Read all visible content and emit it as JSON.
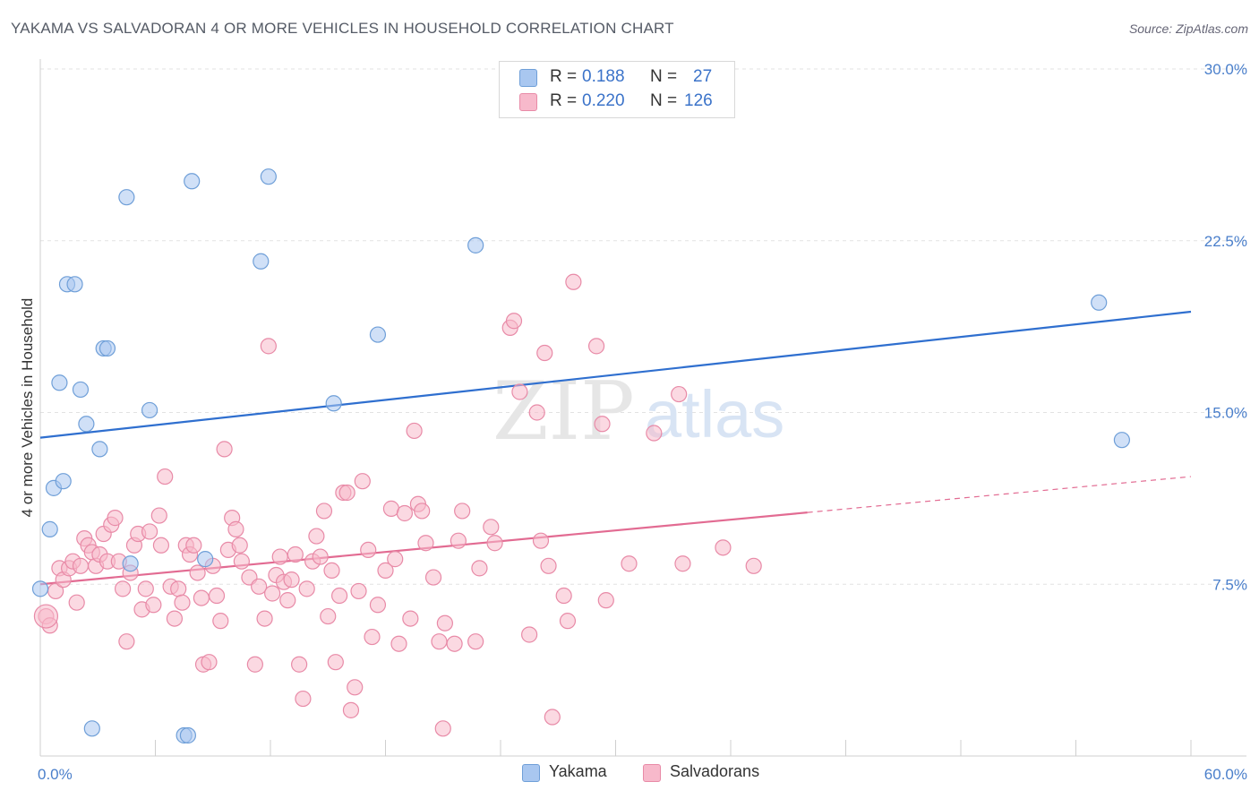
{
  "title": "YAKAMA VS SALVADORAN 4 OR MORE VEHICLES IN HOUSEHOLD CORRELATION CHART",
  "source": "Source: ZipAtlas.com",
  "watermark": {
    "zip": "ZIP",
    "atlas": "atlas"
  },
  "legend": {
    "rows": [
      {
        "r_label": "R =",
        "r_value": "0.188",
        "n_label": "N =",
        "n_value": "27",
        "color": "#a9c7f0",
        "border": "#6f9fd8"
      },
      {
        "r_label": "R =",
        "r_value": "0.220",
        "n_label": "N =",
        "n_value": "126",
        "color": "#f7b9cb",
        "border": "#e88aa7"
      }
    ]
  },
  "bottom_legend": [
    {
      "label": "Yakama",
      "color": "#a9c7f0",
      "border": "#6f9fd8"
    },
    {
      "label": "Salvadorans",
      "color": "#f7b9cb",
      "border": "#e88aa7"
    }
  ],
  "chart_data": {
    "type": "scatter",
    "title": "YAKAMA VS SALVADORAN 4 OR MORE VEHICLES IN HOUSEHOLD CORRELATION CHART",
    "xlabel": "",
    "ylabel": "4 or more Vehicles in Household",
    "xlim": [
      0,
      60
    ],
    "ylim": [
      0,
      30
    ],
    "x_tick_labels": [
      "0.0%",
      "60.0%"
    ],
    "y_ticks": [
      7.5,
      15.0,
      22.5,
      30.0
    ],
    "y_tick_labels": [
      "7.5%",
      "15.0%",
      "22.5%",
      "30.0%"
    ],
    "grid": true,
    "series": [
      {
        "name": "Yakama",
        "color": "#6f9fd8",
        "fill": "#a9c7f0",
        "trend": {
          "x0": 0,
          "y0": 13.9,
          "x1": 60,
          "y1": 19.4,
          "color": "#2f6fcf",
          "dashed_from": null
        },
        "points": [
          [
            0.0,
            7.3
          ],
          [
            0.5,
            9.9
          ],
          [
            0.7,
            11.7
          ],
          [
            1.0,
            16.3
          ],
          [
            1.2,
            12.0
          ],
          [
            1.4,
            20.6
          ],
          [
            1.8,
            20.6
          ],
          [
            2.1,
            16.0
          ],
          [
            2.4,
            14.5
          ],
          [
            3.1,
            13.4
          ],
          [
            3.3,
            17.8
          ],
          [
            3.5,
            17.8
          ],
          [
            4.5,
            24.4
          ],
          [
            4.7,
            8.4
          ],
          [
            5.7,
            15.1
          ],
          [
            7.5,
            0.9
          ],
          [
            7.7,
            0.9
          ],
          [
            7.9,
            25.1
          ],
          [
            8.6,
            8.6
          ],
          [
            11.5,
            21.6
          ],
          [
            11.9,
            25.3
          ],
          [
            15.3,
            15.4
          ],
          [
            17.6,
            18.4
          ],
          [
            22.7,
            22.3
          ],
          [
            55.2,
            19.8
          ],
          [
            56.4,
            13.8
          ],
          [
            2.7,
            1.2
          ]
        ]
      },
      {
        "name": "Salvadorans",
        "color": "#e88aa7",
        "fill": "#f7b9cb",
        "trend": {
          "x0": 0,
          "y0": 7.5,
          "x1": 60,
          "y1": 12.2,
          "color": "#e26b92",
          "solid_until": 40
        },
        "points": [
          [
            0.3,
            6.1
          ],
          [
            0.5,
            5.7
          ],
          [
            0.8,
            7.2
          ],
          [
            1.0,
            8.2
          ],
          [
            1.2,
            7.7
          ],
          [
            1.5,
            8.2
          ],
          [
            1.7,
            8.5
          ],
          [
            1.9,
            6.7
          ],
          [
            2.1,
            8.3
          ],
          [
            2.3,
            9.5
          ],
          [
            2.5,
            9.2
          ],
          [
            2.7,
            8.9
          ],
          [
            2.9,
            8.3
          ],
          [
            3.1,
            8.8
          ],
          [
            3.3,
            9.7
          ],
          [
            3.5,
            8.5
          ],
          [
            3.7,
            10.1
          ],
          [
            3.9,
            10.4
          ],
          [
            4.1,
            8.5
          ],
          [
            4.3,
            7.3
          ],
          [
            4.5,
            5.0
          ],
          [
            4.7,
            8.0
          ],
          [
            4.9,
            9.2
          ],
          [
            5.1,
            9.7
          ],
          [
            5.3,
            6.4
          ],
          [
            5.5,
            7.3
          ],
          [
            5.7,
            9.8
          ],
          [
            5.9,
            6.6
          ],
          [
            6.2,
            10.5
          ],
          [
            6.3,
            9.2
          ],
          [
            6.5,
            12.2
          ],
          [
            6.8,
            7.4
          ],
          [
            7.0,
            6.0
          ],
          [
            7.2,
            7.3
          ],
          [
            7.4,
            6.7
          ],
          [
            7.6,
            9.2
          ],
          [
            7.8,
            8.8
          ],
          [
            8.0,
            9.2
          ],
          [
            8.2,
            8.0
          ],
          [
            8.4,
            6.9
          ],
          [
            8.5,
            4.0
          ],
          [
            8.8,
            4.1
          ],
          [
            9.0,
            8.3
          ],
          [
            9.2,
            7.0
          ],
          [
            9.4,
            5.9
          ],
          [
            9.6,
            13.4
          ],
          [
            9.8,
            9.0
          ],
          [
            10.0,
            10.4
          ],
          [
            10.2,
            9.9
          ],
          [
            10.4,
            9.2
          ],
          [
            10.5,
            8.5
          ],
          [
            10.9,
            7.8
          ],
          [
            11.2,
            4.0
          ],
          [
            11.4,
            7.4
          ],
          [
            11.7,
            6.0
          ],
          [
            11.9,
            17.9
          ],
          [
            12.1,
            7.1
          ],
          [
            12.3,
            7.9
          ],
          [
            12.5,
            8.7
          ],
          [
            12.7,
            7.6
          ],
          [
            12.9,
            6.8
          ],
          [
            13.1,
            7.7
          ],
          [
            13.3,
            8.8
          ],
          [
            13.5,
            4.0
          ],
          [
            13.7,
            2.5
          ],
          [
            13.9,
            7.3
          ],
          [
            14.2,
            8.5
          ],
          [
            14.4,
            9.6
          ],
          [
            14.6,
            8.7
          ],
          [
            14.8,
            10.7
          ],
          [
            15.0,
            6.1
          ],
          [
            15.2,
            8.1
          ],
          [
            15.4,
            4.1
          ],
          [
            15.6,
            7.0
          ],
          [
            15.8,
            11.5
          ],
          [
            16.0,
            11.5
          ],
          [
            16.2,
            2.0
          ],
          [
            16.4,
            3.0
          ],
          [
            16.6,
            7.2
          ],
          [
            16.8,
            12.0
          ],
          [
            17.1,
            9.0
          ],
          [
            17.3,
            5.2
          ],
          [
            17.6,
            6.6
          ],
          [
            18.0,
            8.1
          ],
          [
            18.3,
            10.8
          ],
          [
            18.5,
            8.6
          ],
          [
            18.7,
            4.9
          ],
          [
            19.0,
            10.6
          ],
          [
            19.3,
            6.0
          ],
          [
            19.5,
            14.2
          ],
          [
            19.7,
            11.0
          ],
          [
            19.9,
            10.7
          ],
          [
            20.1,
            9.3
          ],
          [
            20.5,
            7.8
          ],
          [
            20.8,
            5.0
          ],
          [
            21.0,
            1.2
          ],
          [
            21.1,
            5.8
          ],
          [
            21.6,
            4.9
          ],
          [
            21.8,
            9.4
          ],
          [
            22.0,
            10.7
          ],
          [
            22.9,
            8.2
          ],
          [
            22.7,
            5.0
          ],
          [
            23.5,
            10.0
          ],
          [
            23.7,
            9.3
          ],
          [
            24.5,
            18.7
          ],
          [
            24.7,
            19.0
          ],
          [
            25.0,
            15.9
          ],
          [
            25.5,
            5.3
          ],
          [
            25.9,
            15.0
          ],
          [
            26.1,
            9.4
          ],
          [
            26.3,
            17.6
          ],
          [
            26.5,
            8.3
          ],
          [
            26.7,
            1.7
          ],
          [
            27.3,
            7.0
          ],
          [
            27.5,
            5.9
          ],
          [
            27.8,
            20.7
          ],
          [
            29.0,
            17.9
          ],
          [
            29.3,
            14.5
          ],
          [
            29.5,
            6.8
          ],
          [
            30.7,
            8.4
          ],
          [
            32.0,
            14.1
          ],
          [
            33.3,
            15.8
          ],
          [
            33.5,
            8.4
          ],
          [
            35.6,
            9.1
          ],
          [
            37.2,
            8.3
          ]
        ]
      }
    ]
  }
}
